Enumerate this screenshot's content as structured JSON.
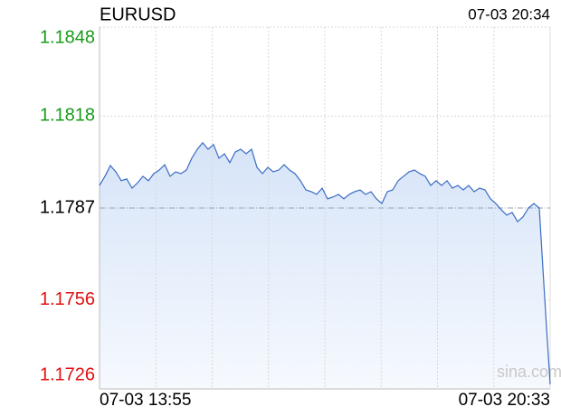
{
  "chart_data": {
    "type": "line",
    "title": "EURUSD",
    "timestamp": "07-03 20:34",
    "watermark": "sina.com",
    "categories": [
      "07-03 13:55",
      null,
      null,
      null,
      null,
      null,
      null,
      null,
      null,
      null,
      null,
      null,
      null,
      null,
      null,
      null,
      null,
      null,
      null,
      null,
      null,
      null,
      null,
      null,
      null,
      null,
      null,
      null,
      null,
      null,
      null,
      null,
      null,
      null,
      null,
      null,
      null,
      null,
      null,
      null,
      null,
      null,
      null,
      null,
      null,
      null,
      null,
      null,
      null,
      null,
      null,
      null,
      null,
      null,
      null,
      null,
      null,
      null,
      null,
      null,
      null,
      null,
      null,
      null,
      null,
      null,
      null,
      null,
      null,
      null,
      null,
      null,
      null,
      null,
      null,
      null,
      null,
      null,
      null,
      null,
      null,
      null,
      null,
      "07-03 20:33"
    ],
    "series": [
      {
        "name": "EURUSD",
        "color": "#3a6bc4",
        "values": [
          1.17946,
          1.17977,
          1.18013,
          1.17992,
          1.17962,
          1.17968,
          1.17937,
          1.17955,
          1.17977,
          1.17962,
          1.17986,
          1.17998,
          1.18016,
          1.17977,
          1.17992,
          1.17986,
          1.17998,
          1.18038,
          1.18068,
          1.1809,
          1.18068,
          1.18084,
          1.18038,
          1.18053,
          1.18023,
          1.18059,
          1.18068,
          1.18053,
          1.18068,
          1.18007,
          1.17986,
          1.18007,
          1.17992,
          1.17998,
          1.18016,
          1.17998,
          1.17986,
          1.17962,
          1.17931,
          1.17925,
          1.17916,
          1.17937,
          1.17901,
          1.17907,
          1.17916,
          1.17901,
          1.17916,
          1.17925,
          1.17931,
          1.17916,
          1.17925,
          1.17901,
          1.17885,
          1.17925,
          1.17931,
          1.17962,
          1.17977,
          1.17992,
          1.17998,
          1.17986,
          1.17977,
          1.17946,
          1.17962,
          1.17946,
          1.17962,
          1.17937,
          1.17946,
          1.17931,
          1.17946,
          1.17925,
          1.17937,
          1.17931,
          1.17901,
          1.17885,
          1.17864,
          1.17846,
          1.17855,
          1.17824,
          1.1784,
          1.1787,
          1.17885,
          1.1787,
          1.17565,
          1.17275
        ]
      }
    ],
    "baseline": 1.1787,
    "ylim": [
      1.1726,
      1.1848
    ],
    "yticks": [
      1.1726,
      1.1756,
      1.1787,
      1.1818,
      1.1848
    ],
    "grid": true,
    "up_color": "#1a9a1a",
    "down_color": "#e01010",
    "flat_color": "#000000"
  }
}
